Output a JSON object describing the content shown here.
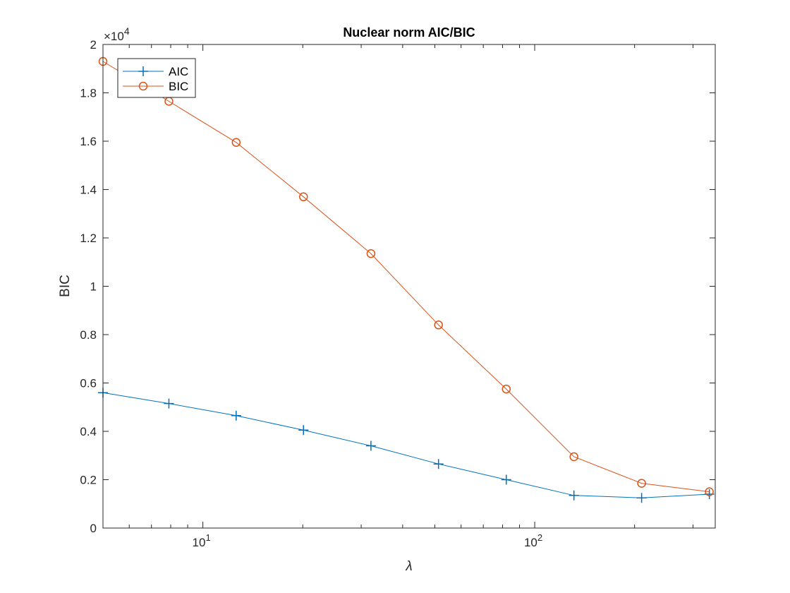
{
  "chart_data": {
    "type": "line",
    "title": "Nuclear norm AIC/BIC",
    "xlabel": "λ",
    "ylabel": "BIC",
    "xscale": "log",
    "xlim": [
      5,
      350
    ],
    "ylim": [
      0,
      20000
    ],
    "y_exponent_label": "×10",
    "y_exponent_power": "4",
    "yticks": [
      0,
      2000,
      4000,
      6000,
      8000,
      10000,
      12000,
      14000,
      16000,
      18000,
      20000
    ],
    "ytick_labels": [
      "0",
      "0.2",
      "0.4",
      "0.6",
      "0.8",
      "1",
      "1.2",
      "1.4",
      "1.6",
      "1.8",
      "2"
    ],
    "xticks_major": [
      {
        "value": 10,
        "base": "10",
        "power": "1"
      },
      {
        "value": 100,
        "base": "10",
        "power": "2"
      }
    ],
    "legend_position": "top-left",
    "grid": false,
    "x": [
      5,
      7.9,
      12.6,
      20.1,
      32.1,
      51.3,
      82.1,
      131.3,
      210,
      336
    ],
    "series": [
      {
        "name": "AIC",
        "color": "#0072BD",
        "marker": "plus",
        "values": [
          5600,
          5150,
          4650,
          4050,
          3400,
          2650,
          2000,
          1350,
          1250,
          1400
        ]
      },
      {
        "name": "BIC",
        "color": "#D95319",
        "marker": "circle",
        "values": [
          19300,
          17650,
          15950,
          13700,
          11350,
          8400,
          5750,
          2950,
          1850,
          1500
        ]
      }
    ]
  }
}
